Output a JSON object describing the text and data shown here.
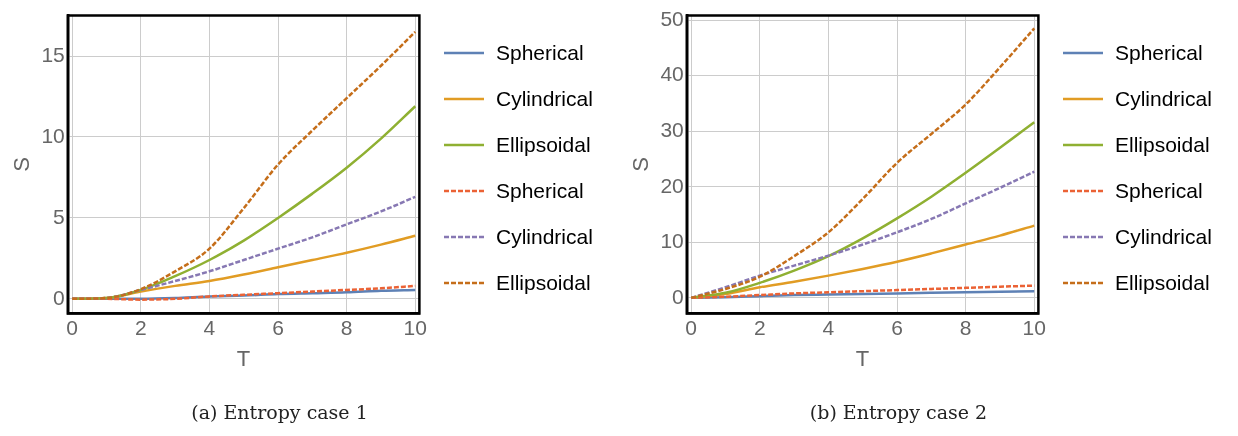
{
  "chart_data": [
    {
      "type": "line",
      "xlabel": "T",
      "ylabel": "S",
      "annotations": [
        "(a) Entropy case 1"
      ],
      "x": [
        0,
        1,
        2,
        3,
        4,
        5,
        6,
        7,
        8,
        9,
        10
      ],
      "xlim": [
        -0.13,
        10.12
      ],
      "ylim": [
        -0.9,
        17.5
      ],
      "xticks": [
        0,
        2,
        4,
        6,
        8,
        10
      ],
      "yticks": [
        0,
        5,
        10,
        15
      ],
      "grid": true,
      "legend": "right",
      "marker": "none",
      "series": [
        {
          "name": "Spherical",
          "color": "#5e81b5",
          "line_style": "solid",
          "values": [
            0,
            0,
            0,
            0.05,
            0.15,
            0.2,
            0.3,
            0.35,
            0.4,
            0.5,
            0.55
          ]
        },
        {
          "name": "Cylindrical",
          "color": "#e19c24",
          "line_style": "solid",
          "values": [
            0,
            0.05,
            0.45,
            0.8,
            1.1,
            1.5,
            1.95,
            2.4,
            2.85,
            3.35,
            3.9
          ]
        },
        {
          "name": "Ellipsoidal",
          "color": "#8fb032",
          "line_style": "solid",
          "values": [
            0,
            0.05,
            0.55,
            1.4,
            2.4,
            3.6,
            5.0,
            6.5,
            8.1,
            9.9,
            11.9
          ]
        },
        {
          "name": "Spherical",
          "color": "#eb6235",
          "line_style": "dashed",
          "values": [
            0,
            0,
            -0.05,
            0,
            0.15,
            0.25,
            0.35,
            0.45,
            0.55,
            0.65,
            0.8
          ]
        },
        {
          "name": "Cylindrical",
          "color": "#8778b3",
          "line_style": "dashed",
          "values": [
            0,
            0.05,
            0.55,
            1.1,
            1.7,
            2.4,
            3.1,
            3.8,
            4.6,
            5.4,
            6.3
          ]
        },
        {
          "name": "Ellipsoidal",
          "color": "#c56e1a",
          "line_style": "dashed",
          "values": [
            0,
            0.05,
            0.6,
            1.7,
            3.1,
            5.6,
            8.3,
            10.4,
            12.4,
            14.4,
            16.5
          ]
        }
      ]
    },
    {
      "type": "line",
      "xlabel": "T",
      "ylabel": "S",
      "annotations": [
        "(b) Entropy case 2"
      ],
      "x": [
        0,
        1,
        2,
        3,
        4,
        5,
        6,
        7,
        8,
        9,
        10
      ],
      "xlim": [
        -0.13,
        10.12
      ],
      "ylim": [
        -2.8,
        50.8
      ],
      "xticks": [
        0,
        2,
        4,
        6,
        8,
        10
      ],
      "yticks": [
        0,
        10,
        20,
        30,
        40,
        50
      ],
      "grid": true,
      "legend": "right",
      "marker": "none",
      "series": [
        {
          "name": "Spherical",
          "color": "#5e81b5",
          "line_style": "solid",
          "values": [
            0,
            0.1,
            0.3,
            0.5,
            0.6,
            0.7,
            0.8,
            0.9,
            1.0,
            1.1,
            1.2
          ]
        },
        {
          "name": "Cylindrical",
          "color": "#e19c24",
          "line_style": "solid",
          "values": [
            0,
            0.7,
            1.9,
            2.9,
            4.0,
            5.2,
            6.5,
            8.0,
            9.6,
            11.2,
            13.0
          ]
        },
        {
          "name": "Ellipsoidal",
          "color": "#8fb032",
          "line_style": "solid",
          "values": [
            0,
            0.9,
            2.7,
            4.9,
            7.5,
            10.7,
            14.3,
            18.2,
            22.5,
            27,
            31.6
          ]
        },
        {
          "name": "Spherical",
          "color": "#eb6235",
          "line_style": "dashed",
          "values": [
            0,
            0.2,
            0.5,
            0.8,
            1.0,
            1.2,
            1.4,
            1.6,
            1.8,
            2.0,
            2.2
          ]
        },
        {
          "name": "Cylindrical",
          "color": "#8778b3",
          "line_style": "dashed",
          "values": [
            0,
            1.9,
            4.0,
            5.8,
            7.6,
            9.6,
            11.8,
            14.2,
            17.0,
            19.8,
            22.7
          ]
        },
        {
          "name": "Ellipsoidal",
          "color": "#c56e1a",
          "line_style": "dashed",
          "values": [
            0,
            1.6,
            3.8,
            7.5,
            11.8,
            17.8,
            24.3,
            29.5,
            34.8,
            41.5,
            48.5
          ]
        }
      ]
    }
  ]
}
